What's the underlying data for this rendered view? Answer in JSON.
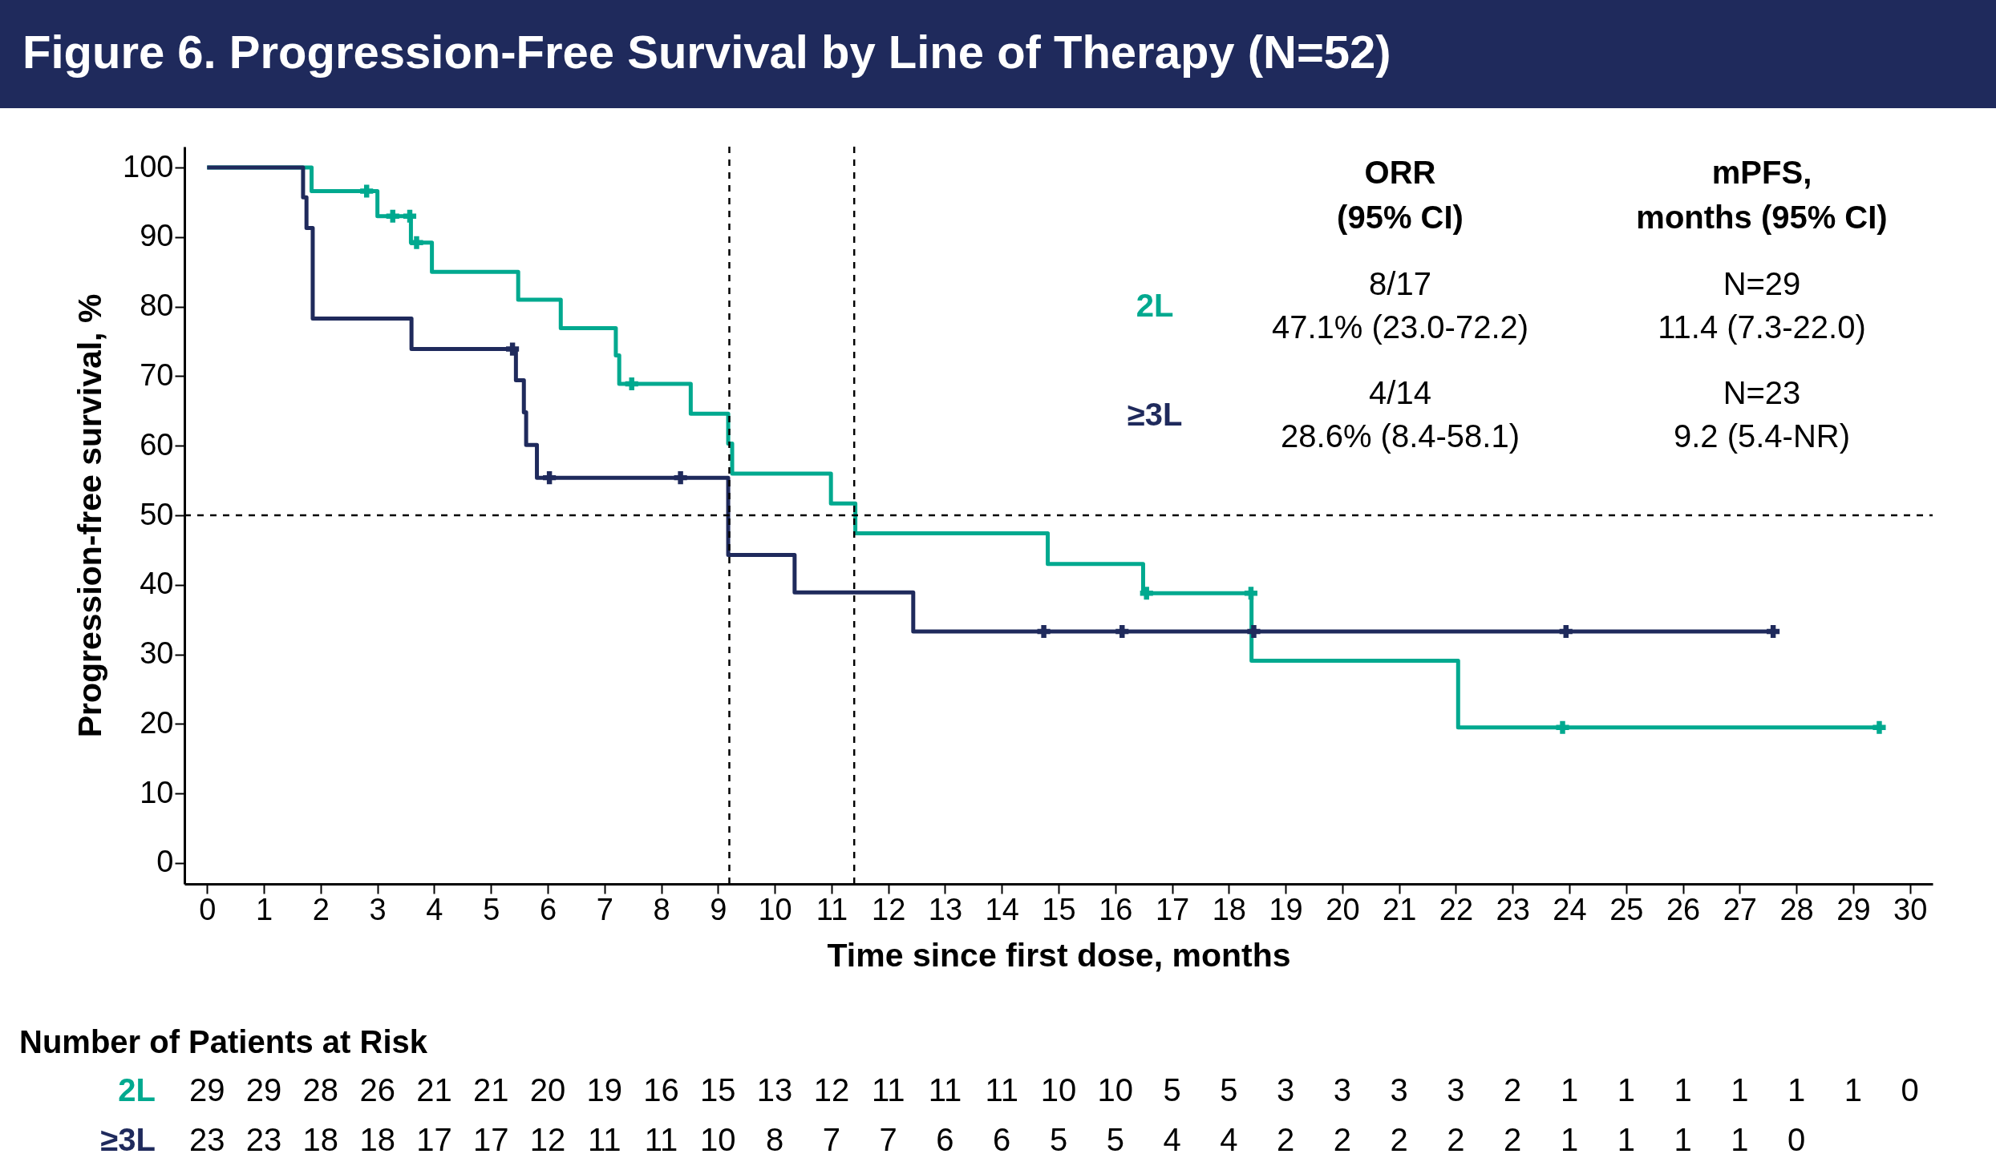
{
  "chart_data": {
    "type": "step",
    "title": "Figure 6. Progression-Free Survival by Line of Therapy (N=52)",
    "xlabel": "Time since first dose, months",
    "ylabel": "Progression-free survival, %",
    "xlim": [
      -0.4,
      30.4
    ],
    "ylim": [
      -3,
      103
    ],
    "xticks": [
      0,
      1,
      2,
      3,
      4,
      5,
      6,
      7,
      8,
      9,
      10,
      11,
      12,
      13,
      14,
      15,
      16,
      17,
      18,
      19,
      20,
      21,
      22,
      23,
      24,
      25,
      26,
      27,
      28,
      29,
      30
    ],
    "yticks": [
      0,
      10,
      20,
      30,
      40,
      50,
      60,
      70,
      80,
      90,
      100
    ],
    "grid": false,
    "line_style": "solid",
    "series": [
      {
        "name": "2L",
        "color": "#00a98f",
        "x": [
          0,
          1.84,
          3.0,
          3.59,
          3.96,
          5.48,
          6.23,
          7.2,
          7.26,
          8.52,
          9.18,
          9.25,
          10.99,
          11.42,
          14.81,
          16.49,
          18.4,
          22.04,
          29.46
        ],
        "values": [
          100,
          96.6,
          93.0,
          89.2,
          85.0,
          81.0,
          76.9,
          73.0,
          68.9,
          64.6,
          60.3,
          56.0,
          51.7,
          47.4,
          43.0,
          38.8,
          29.1,
          19.5,
          19.5
        ]
      },
      {
        "name": "≥3L",
        "color": "#1f2a5c",
        "x": [
          0,
          1.69,
          1.75,
          1.86,
          3.6,
          5.44,
          5.58,
          5.62,
          5.81,
          9.18,
          10.35,
          12.44,
          27.59
        ],
        "values": [
          100,
          95.7,
          91.3,
          78.3,
          73.9,
          69.4,
          64.8,
          60.1,
          55.4,
          44.3,
          38.9,
          33.3,
          33.3
        ]
      },
      {
        "type": "scatter",
        "marker": "cross",
        "color": "#00a98f",
        "x": [
          2.81,
          3.27,
          3.57,
          3.69,
          7.48,
          16.55,
          18.39,
          23.88,
          29.46
        ],
        "values": [
          96.6,
          93.0,
          93.0,
          89.2,
          68.9,
          38.8,
          38.8,
          19.5,
          19.5
        ]
      },
      {
        "type": "scatter",
        "marker": "cross",
        "color": "#1f2a5c",
        "x": [
          5.38,
          6.03,
          8.34,
          14.74,
          16.12,
          18.44,
          23.94,
          27.59
        ],
        "values": [
          73.9,
          55.4,
          55.4,
          33.3,
          33.3,
          33.3,
          33.3,
          33.3
        ]
      }
    ],
    "ref_lines": [
      {
        "axis": "x",
        "value": 9.2,
        "line_style": "dashed",
        "color": "#000000"
      },
      {
        "axis": "x",
        "value": 11.4,
        "line_style": "dashed",
        "color": "#000000"
      },
      {
        "axis": "y",
        "value": 50,
        "line_style": "dashed",
        "color": "#000000"
      }
    ],
    "annotations": [
      "ORR",
      "(95% CI)",
      "mPFS,",
      "months (95% CI)",
      "8/17",
      "47.1% (23.0-72.2)",
      "N=29",
      "11.4 (7.3-22.0)",
      "4/14",
      "28.6% (8.4-58.1)",
      "N=23",
      "9.2 (5.4-NR)",
      "Number of Patients at Risk",
      "29 29 28 26 21 21 20 19 16 15 13 12 11 11 11 10 10 5 5 3 3 3 3 2 1 1 1 1 1 1 0",
      "23 23 18 18 17 17 12 11 11 10 8 7 7 6 6 5 5 4 4 2 2 2 2 2 1 1 1 1 0"
    ]
  }
}
